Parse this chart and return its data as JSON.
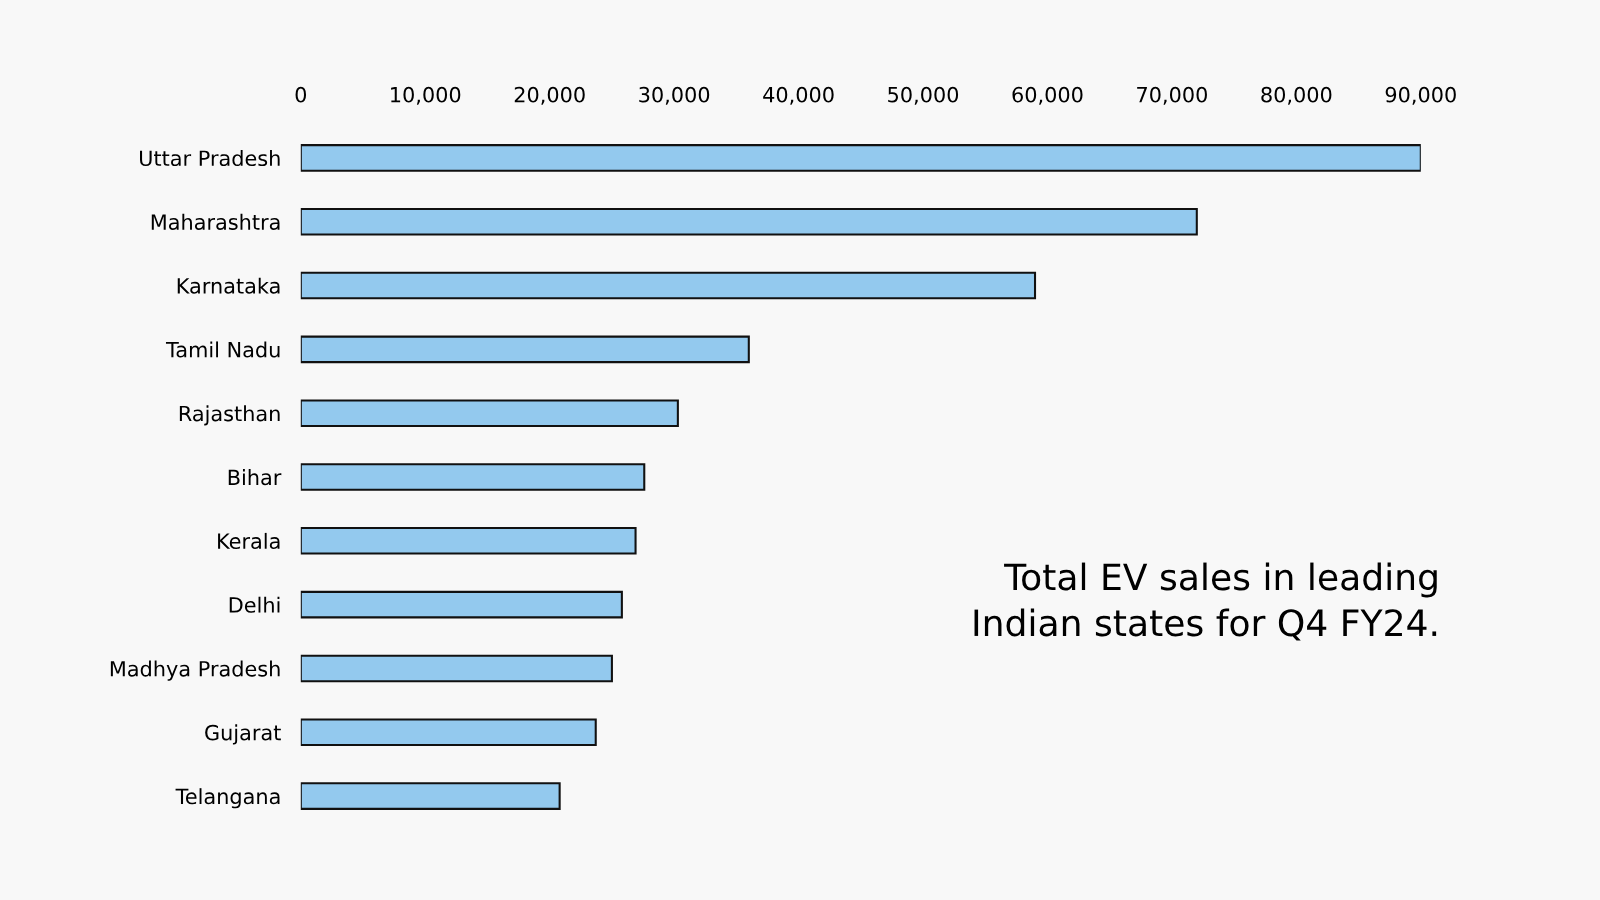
{
  "chart_data": {
    "type": "bar",
    "orientation": "horizontal",
    "title": "Total EV sales in leading Indian states for Q4 FY24.",
    "categories": [
      "Uttar Pradesh",
      "Maharashtra",
      "Karnataka",
      "Tamil Nadu",
      "Rajasthan",
      "Bihar",
      "Kerala",
      "Delhi",
      "Madhya Pradesh",
      "Gujarat",
      "Telangana"
    ],
    "values": [
      90000,
      72000,
      59000,
      36000,
      30300,
      27600,
      26900,
      25800,
      25000,
      23700,
      20800
    ],
    "color": "#93c9ee",
    "xlim": [
      0,
      90000
    ],
    "xticks": [
      0,
      {
        "value": 10000,
        "label": "10,000"
      },
      {
        "value": 20000,
        "label": "20,000"
      },
      {
        "value": 30000,
        "label": "30,000"
      },
      {
        "value": 40000,
        "label": "40,000"
      },
      {
        "value": 50000,
        "label": "50,000"
      },
      {
        "value": 60000,
        "label": "60,000"
      },
      {
        "value": 70000,
        "label": "70,000"
      },
      {
        "value": 80000,
        "label": "80,000"
      },
      {
        "value": 90000,
        "label": "90,000"
      }
    ],
    "grid": false,
    "legend": false
  }
}
